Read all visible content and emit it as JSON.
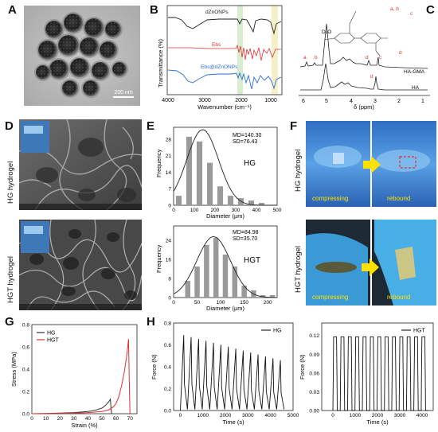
{
  "panels": {
    "A": {
      "label": "A",
      "scale_bar": "200 nm"
    },
    "B": {
      "label": "B",
      "ylabel": "Transmittance (%)",
      "xlabel": "Wavenumber (cm⁻¹)",
      "xticks": [
        "4000",
        "3000",
        "2000",
        "1000"
      ],
      "series": [
        {
          "name": "dZnONPs",
          "color": "#222222"
        },
        {
          "name": "Ebs",
          "color": "#e03030"
        },
        {
          "name": "Ebs@dZnONPs",
          "color": "#2a6fd6"
        }
      ],
      "band_colors": [
        "#d8ecd0",
        "#f7efc8"
      ]
    },
    "C": {
      "label": "C",
      "xlabel": "δ (ppm)",
      "xticks": [
        "6",
        "5",
        "4",
        "3",
        "2",
        "1"
      ],
      "solvent": "D₂O",
      "series": [
        {
          "name": "HA-GMA"
        },
        {
          "name": "HA"
        }
      ],
      "peaks": [
        "a",
        "b",
        "c",
        "d",
        "a, b",
        "c",
        "d"
      ]
    },
    "D": {
      "label": "D",
      "rows": [
        {
          "name": "HG hydrogel"
        },
        {
          "name": "HGT hydrogel"
        }
      ]
    },
    "E": {
      "label": "E",
      "charts": [
        {
          "title": "HG",
          "stats": [
            "MD=140.30",
            "SD=76.43"
          ],
          "ylabel": "Frequency",
          "xlabel": "Diameter (μm)",
          "yticks": [
            "0",
            "7",
            "14",
            "21",
            "28"
          ],
          "xticks": [
            "0",
            "100",
            "200",
            "300",
            "400",
            "500"
          ]
        },
        {
          "title": "HGT",
          "stats": [
            "MD=84.98",
            "SD=35.70"
          ],
          "ylabel": "Frequency",
          "xlabel": "Diameter (μm)",
          "yticks": [
            "0",
            "8",
            "16",
            "24"
          ],
          "xticks": [
            "0",
            "50",
            "100",
            "150",
            "200"
          ]
        }
      ]
    },
    "F": {
      "label": "F",
      "rows": [
        {
          "name": "HG hydrogel",
          "left": "compressing",
          "right": "rebound"
        },
        {
          "name": "HGT hydrogel",
          "left": "compressing",
          "right": "rebound"
        }
      ]
    },
    "G": {
      "label": "G",
      "ylabel": "Stress (MPa)",
      "xlabel": "Strain (%)",
      "yticks": [
        "0.0",
        "0.2",
        "0.4",
        "0.6",
        "0.8"
      ],
      "xticks": [
        "0",
        "10",
        "20",
        "30",
        "40",
        "50",
        "60",
        "70"
      ],
      "legend": [
        {
          "name": "HG",
          "color": "#333333"
        },
        {
          "name": "HGT",
          "color": "#e03030"
        }
      ]
    },
    "H": {
      "label": "H",
      "charts": [
        {
          "legend": "HG",
          "ylabel": "Force (N)",
          "xlabel": "Time (s)",
          "yticks": [
            "0.0",
            "0.2",
            "0.4",
            "0.6",
            "0.8"
          ],
          "xticks": [
            "0",
            "1000",
            "2000",
            "3000",
            "4000",
            "5000"
          ]
        },
        {
          "legend": "HGT",
          "ylabel": "Force (N)",
          "xlabel": "Time (s)",
          "yticks": [
            "0.00",
            "0.03",
            "0.06",
            "0.09",
            "0.12"
          ],
          "xticks": [
            "0",
            "1000",
            "2000",
            "3000",
            "4000"
          ]
        }
      ]
    }
  },
  "chart_data": [
    {
      "type": "bar",
      "title": "HG",
      "xlabel": "Diameter (μm)",
      "ylabel": "Frequency",
      "categories": [
        25,
        75,
        125,
        175,
        225,
        275,
        325,
        375,
        425
      ],
      "values": [
        4,
        29,
        27,
        18,
        8,
        4,
        3,
        2,
        1
      ],
      "xlim": [
        0,
        500
      ],
      "ylim": [
        0,
        33
      ],
      "fit_mean": 140.3,
      "fit_sd": 76.43,
      "fit_peak": 32
    },
    {
      "type": "bar",
      "title": "HGT",
      "xlabel": "Diameter (μm)",
      "ylabel": "Frequency",
      "categories": [
        30,
        50,
        70,
        90,
        110,
        130,
        150,
        170,
        190,
        210
      ],
      "values": [
        7,
        13,
        22,
        25,
        18,
        13,
        5,
        3,
        1,
        1
      ],
      "xlim": [
        0,
        220
      ],
      "ylim": [
        0,
        30
      ],
      "fit_mean": 84.98,
      "fit_sd": 35.7,
      "fit_peak": 25.5
    },
    {
      "type": "line",
      "xlabel": "Strain (%)",
      "ylabel": "Stress (MPa)",
      "xlim": [
        0,
        75
      ],
      "ylim": [
        0,
        0.8
      ],
      "series": [
        {
          "name": "HG",
          "x": [
            0,
            10,
            20,
            30,
            40,
            45,
            50,
            53,
            55,
            56,
            56.5,
            57
          ],
          "y": [
            0,
            0.002,
            0.005,
            0.01,
            0.02,
            0.03,
            0.05,
            0.08,
            0.11,
            0.13,
            0.05,
            0.0
          ]
        },
        {
          "name": "HGT",
          "x": [
            0,
            10,
            20,
            30,
            40,
            50,
            55,
            58,
            60,
            62,
            64,
            66,
            68,
            69,
            69.5,
            70
          ],
          "y": [
            0,
            0.001,
            0.003,
            0.006,
            0.01,
            0.02,
            0.035,
            0.06,
            0.09,
            0.15,
            0.25,
            0.38,
            0.55,
            0.67,
            0.3,
            0.0
          ]
        }
      ]
    },
    {
      "type": "line",
      "legend": "HG",
      "xlabel": "Time (s)",
      "ylabel": "Force (N)",
      "xlim": [
        -300,
        5000
      ],
      "ylim": [
        0,
        0.8
      ],
      "cycles": 14,
      "t_start": 0,
      "period": 330,
      "peak_start": 0.69,
      "peak_end": 0.46
    },
    {
      "type": "line",
      "legend": "HGT",
      "xlabel": "Time (s)",
      "ylabel": "Force (N)",
      "xlim": [
        -500,
        4500
      ],
      "ylim": [
        0,
        0.14
      ],
      "cycles": 13,
      "t_start": 0,
      "period": 330,
      "peak_start": 0.118,
      "peak_end": 0.118
    }
  ]
}
